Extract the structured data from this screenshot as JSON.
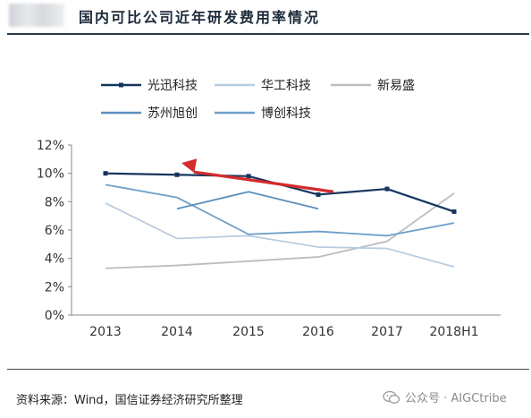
{
  "header": {
    "title": "国内可比公司近年研发费用率情况"
  },
  "source_text": "资料来源：Wind，国信证券经济研究所整理",
  "watermark": {
    "text": "公众号 · AIGCtribe",
    "icon": "wechat-icon"
  },
  "colors": {
    "series": [
      "#15355e",
      "#b9cde0",
      "#bdbdbd",
      "#5b8fbd",
      "#6d9fca"
    ],
    "arrow": "#d42b2b"
  },
  "chart_data": {
    "type": "line",
    "title": "",
    "xlabel": "",
    "ylabel": "",
    "x": [
      "2013",
      "2014",
      "2015",
      "2016",
      "2017",
      "2018H1"
    ],
    "ylim": [
      0,
      12
    ],
    "yticks": [
      "0%",
      "2%",
      "4%",
      "6%",
      "8%",
      "10%",
      "12%"
    ],
    "grid": false,
    "legend_position": "top",
    "series": [
      {
        "name": "光迅科技",
        "values": [
          10.0,
          9.9,
          9.8,
          8.5,
          8.9,
          7.3
        ],
        "markers": true
      },
      {
        "name": "华工科技",
        "values": [
          7.9,
          5.4,
          5.6,
          4.8,
          4.7,
          3.4
        ]
      },
      {
        "name": "新易盛",
        "values": [
          3.3,
          3.5,
          3.8,
          4.1,
          5.2,
          8.6
        ]
      },
      {
        "name": "苏州旭创",
        "values": [
          null,
          7.5,
          8.7,
          7.5,
          null,
          null
        ],
        "x_offset": [
          0,
          0,
          0,
          0,
          0,
          0
        ]
      },
      {
        "name": "博创科技",
        "values": [
          9.2,
          8.3,
          5.7,
          5.9,
          5.6,
          6.5
        ]
      }
    ],
    "annotation": {
      "type": "arrow",
      "from": [
        "2016",
        8.7
      ],
      "to": [
        "2014",
        10.6
      ]
    }
  }
}
